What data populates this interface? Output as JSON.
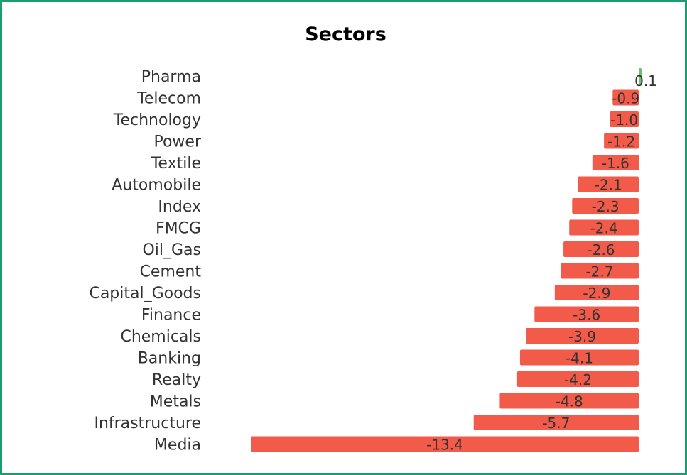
{
  "chart_data": {
    "type": "bar",
    "orientation": "horizontal",
    "title": "Sectors",
    "categories": [
      "Pharma",
      "Telecom",
      "Technology",
      "Power",
      "Textile",
      "Automobile",
      "Index",
      "FMCG",
      "Oil_Gas",
      "Cement",
      "Capital_Goods",
      "Finance",
      "Chemicals",
      "Banking",
      "Realty",
      "Metals",
      "Infrastructure",
      "Media"
    ],
    "values": [
      0.1,
      -0.9,
      -1.0,
      -1.2,
      -1.6,
      -2.1,
      -2.3,
      -2.4,
      -2.6,
      -2.7,
      -2.9,
      -3.6,
      -3.9,
      -4.1,
      -4.2,
      -4.8,
      -5.7,
      -13.4
    ],
    "value_labels": [
      "0.1",
      "-0.9",
      "-1.0",
      "-1.2",
      "-1.6",
      "-2.1",
      "-2.3",
      "-2.4",
      "-2.6",
      "-2.7",
      "-2.9",
      "-3.6",
      "-3.9",
      "-4.1",
      "-4.2",
      "-4.8",
      "-5.7",
      "-13.4"
    ],
    "xlim": [
      -13.4,
      0.1
    ],
    "grid": false,
    "legend": false,
    "colors": {
      "negative": "#f25a4a",
      "positive": "#6cc06c",
      "frame": "#1a9e6e"
    }
  }
}
